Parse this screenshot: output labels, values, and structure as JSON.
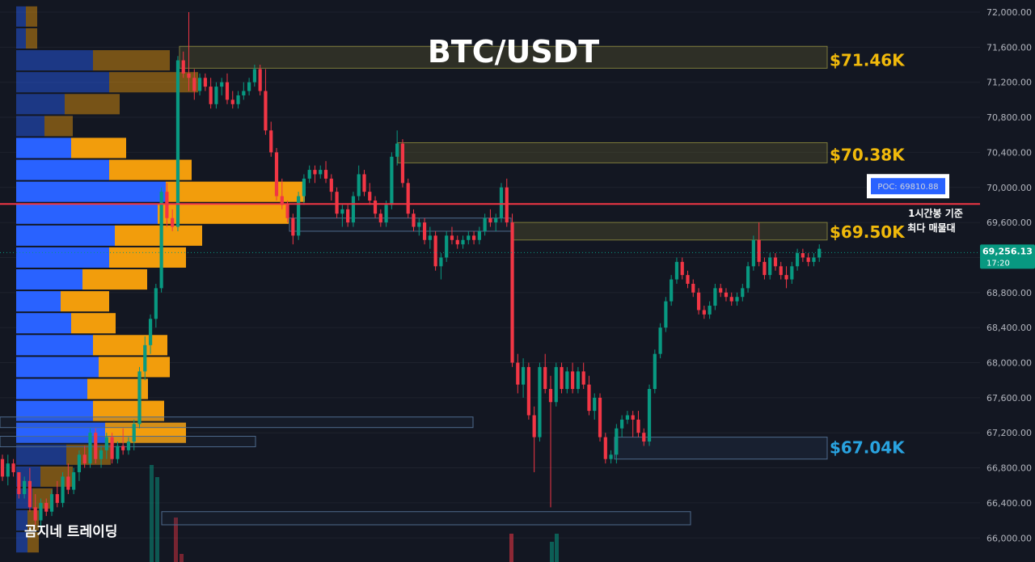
{
  "chart_data": {
    "type": "candlestick",
    "title": "BTC/USDT",
    "watermark": "곰지네 트레이딩",
    "ylim": [
      65900,
      72150
    ],
    "y_ticks": [
      "72,000.00",
      "71,600.00",
      "71,200.00",
      "70,800.00",
      "70,400.00",
      "70,000.00",
      "69,600.00",
      "69,200.00",
      "68,800.00",
      "68,400.00",
      "68,000.00",
      "67,600.00",
      "67,200.00",
      "66,800.00",
      "66,400.00",
      "66,000.00"
    ],
    "y_tick_values": [
      72000,
      71600,
      71200,
      70800,
      70400,
      70000,
      69600,
      69200,
      68800,
      68400,
      68000,
      67600,
      67200,
      66800,
      66400,
      66000
    ],
    "current_price": {
      "label": "69,256.13",
      "time": "17:20",
      "value": 69256.13,
      "color": "#089981"
    },
    "poc": {
      "label": "POC: 69810.88",
      "value": 69810.88,
      "color": "#f23645",
      "note_line1": "1시간봉 기준",
      "note_line2": "최다 매물대"
    },
    "levels": [
      {
        "label": "$71.46K",
        "value": 71460,
        "low": 71360,
        "high": 71610,
        "color": "#f0b90b"
      },
      {
        "label": "$70.38K",
        "value": 70380,
        "low": 70280,
        "high": 70510,
        "color": "#f0b90b"
      },
      {
        "label": "$69.50K",
        "value": 69500,
        "low": 69400,
        "high": 69600,
        "color": "#f0b90b"
      },
      {
        "label": "$67.04K",
        "value": 67040,
        "low": 66900,
        "high": 67150,
        "color": "#29a3e0"
      }
    ],
    "volume_profile": [
      {
        "price": 71950,
        "buy": 12,
        "sell": 14,
        "faded": true
      },
      {
        "price": 71700,
        "buy": 12,
        "sell": 14,
        "faded": true
      },
      {
        "price": 71450,
        "buy": 95,
        "sell": 95,
        "faded": true
      },
      {
        "price": 71200,
        "buy": 115,
        "sell": 110,
        "faded": true
      },
      {
        "price": 70950,
        "buy": 60,
        "sell": 68,
        "faded": true
      },
      {
        "price": 70700,
        "buy": 35,
        "sell": 35,
        "faded": true
      },
      {
        "price": 70450,
        "buy": 68,
        "sell": 68,
        "faded": false
      },
      {
        "price": 70200,
        "buy": 115,
        "sell": 102,
        "faded": false
      },
      {
        "price": 69950,
        "buy": 185,
        "sell": 172,
        "faded": false
      },
      {
        "price": 69700,
        "buy": 175,
        "sell": 162,
        "faded": false
      },
      {
        "price": 69450,
        "buy": 122,
        "sell": 108,
        "faded": false
      },
      {
        "price": 69200,
        "buy": 115,
        "sell": 95,
        "faded": false
      },
      {
        "price": 68950,
        "buy": 82,
        "sell": 80,
        "faded": false
      },
      {
        "price": 68700,
        "buy": 55,
        "sell": 60,
        "faded": false
      },
      {
        "price": 68450,
        "buy": 68,
        "sell": 55,
        "faded": false
      },
      {
        "price": 68200,
        "buy": 95,
        "sell": 92,
        "faded": false
      },
      {
        "price": 67950,
        "buy": 102,
        "sell": 88,
        "faded": false
      },
      {
        "price": 67700,
        "buy": 88,
        "sell": 75,
        "faded": false
      },
      {
        "price": 67450,
        "buy": 95,
        "sell": 88,
        "faded": false
      },
      {
        "price": 67200,
        "buy": 110,
        "sell": 100,
        "faded": false
      },
      {
        "price": 66950,
        "buy": 62,
        "sell": 55,
        "faded": true
      },
      {
        "price": 66700,
        "buy": 30,
        "sell": 40,
        "faded": true
      },
      {
        "price": 66450,
        "buy": 20,
        "sell": 25,
        "faded": true
      },
      {
        "price": 66200,
        "buy": 14,
        "sell": 14,
        "faded": true
      },
      {
        "price": 65950,
        "buy": 14,
        "sell": 14,
        "faded": true
      }
    ],
    "candles": [
      [
        66900,
        66950,
        66650,
        66700
      ],
      [
        66700,
        66950,
        66600,
        66850
      ],
      [
        66850,
        66900,
        66700,
        66750
      ],
      [
        66750,
        66750,
        66450,
        66500
      ],
      [
        66500,
        66700,
        66450,
        66650
      ],
      [
        66650,
        66800,
        66300,
        66350
      ],
      [
        66350,
        66500,
        66150,
        66200
      ],
      [
        66200,
        66450,
        66100,
        66400
      ],
      [
        66400,
        66450,
        66250,
        66300
      ],
      [
        66300,
        66550,
        66250,
        66500
      ],
      [
        66500,
        66650,
        66350,
        66400
      ],
      [
        66400,
        66750,
        66350,
        66700
      ],
      [
        66700,
        66850,
        66500,
        66550
      ],
      [
        66550,
        66800,
        66500,
        66750
      ],
      [
        66750,
        67000,
        66650,
        66950
      ],
      [
        66950,
        67050,
        66800,
        66850
      ],
      [
        66850,
        67250,
        66800,
        67200
      ],
      [
        67200,
        67250,
        66850,
        66900
      ],
      [
        66900,
        67050,
        66800,
        67000
      ],
      [
        67000,
        67200,
        66900,
        67150
      ],
      [
        67150,
        67200,
        66850,
        66900
      ],
      [
        66900,
        67100,
        66850,
        67050
      ],
      [
        67050,
        67250,
        66950,
        67000
      ],
      [
        67000,
        67150,
        66950,
        67100
      ],
      [
        67100,
        67350,
        67000,
        67300
      ],
      [
        67300,
        67950,
        67250,
        67900
      ],
      [
        67900,
        68300,
        67800,
        68200
      ],
      [
        68200,
        68550,
        68100,
        68500
      ],
      [
        68500,
        68900,
        68400,
        68850
      ],
      [
        68850,
        70000,
        68800,
        69950
      ],
      [
        69950,
        70050,
        69550,
        69650
      ],
      [
        69650,
        69750,
        69500,
        69550
      ],
      [
        69550,
        71500,
        69500,
        71450
      ],
      [
        71450,
        71550,
        71250,
        71300
      ],
      [
        71300,
        72000,
        71100,
        71250
      ],
      [
        71250,
        71350,
        71000,
        71100
      ],
      [
        71100,
        71300,
        71050,
        71250
      ],
      [
        71250,
        71300,
        71100,
        71150
      ],
      [
        71150,
        71250,
        70900,
        70950
      ],
      [
        70950,
        71200,
        70900,
        71150
      ],
      [
        71150,
        71250,
        71050,
        71200
      ],
      [
        71200,
        71300,
        70950,
        71000
      ],
      [
        71000,
        71100,
        70900,
        70950
      ],
      [
        70950,
        71100,
        70900,
        71050
      ],
      [
        71050,
        71200,
        71000,
        71100
      ],
      [
        71100,
        71250,
        71050,
        71200
      ],
      [
        71200,
        71400,
        71150,
        71350
      ],
      [
        71350,
        71400,
        71050,
        71100
      ],
      [
        71100,
        71350,
        70600,
        70650
      ],
      [
        70650,
        70750,
        70350,
        70400
      ],
      [
        70400,
        70450,
        69850,
        69900
      ],
      [
        69900,
        70100,
        69750,
        69800
      ],
      [
        69800,
        69850,
        69600,
        69650
      ],
      [
        69650,
        69700,
        69350,
        69450
      ],
      [
        69450,
        69950,
        69400,
        69900
      ],
      [
        69900,
        70150,
        69800,
        70100
      ],
      [
        70100,
        70250,
        70050,
        70200
      ],
      [
        70200,
        70250,
        70050,
        70150
      ],
      [
        70150,
        70250,
        70100,
        70200
      ],
      [
        70200,
        70300,
        70050,
        70100
      ],
      [
        70100,
        70150,
        69850,
        69950
      ],
      [
        69950,
        70000,
        69650,
        69700
      ],
      [
        69700,
        69800,
        69550,
        69750
      ],
      [
        69750,
        69800,
        69550,
        69600
      ],
      [
        69600,
        69950,
        69550,
        69900
      ],
      [
        69900,
        70250,
        69850,
        70150
      ],
      [
        70150,
        70200,
        69900,
        69950
      ],
      [
        69950,
        70050,
        69800,
        69850
      ],
      [
        69850,
        69900,
        69650,
        69700
      ],
      [
        69700,
        69750,
        69550,
        69600
      ],
      [
        69600,
        69850,
        69550,
        69800
      ],
      [
        69800,
        70400,
        69750,
        70350
      ],
      [
        70350,
        70650,
        70250,
        70500
      ],
      [
        70500,
        70550,
        70000,
        70050
      ],
      [
        70050,
        70100,
        69650,
        69700
      ],
      [
        69700,
        69750,
        69500,
        69550
      ],
      [
        69550,
        69650,
        69450,
        69600
      ],
      [
        69600,
        69650,
        69350,
        69400
      ],
      [
        69400,
        69550,
        69300,
        69450
      ],
      [
        69450,
        69500,
        69050,
        69100
      ],
      [
        69100,
        69250,
        68950,
        69200
      ],
      [
        69200,
        69500,
        69150,
        69450
      ],
      [
        69450,
        69550,
        69350,
        69400
      ],
      [
        69400,
        69450,
        69300,
        69350
      ],
      [
        69350,
        69450,
        69300,
        69400
      ],
      [
        69400,
        69500,
        69350,
        69450
      ],
      [
        69450,
        69500,
        69350,
        69400
      ],
      [
        69400,
        69550,
        69350,
        69500
      ],
      [
        69500,
        69700,
        69450,
        69650
      ],
      [
        69650,
        69750,
        69550,
        69600
      ],
      [
        69600,
        69700,
        69500,
        69650
      ],
      [
        69650,
        70050,
        69600,
        70000
      ],
      [
        70000,
        70100,
        69550,
        69600
      ],
      [
        69600,
        69700,
        67950,
        68000
      ],
      [
        68000,
        68100,
        67650,
        67750
      ],
      [
        67750,
        68050,
        67600,
        67950
      ],
      [
        67950,
        68000,
        67350,
        67400
      ],
      [
        67400,
        67500,
        66750,
        67150
      ],
      [
        67150,
        68000,
        67100,
        67950
      ],
      [
        67950,
        68100,
        67650,
        67700
      ],
      [
        67700,
        67850,
        66350,
        67550
      ],
      [
        67550,
        68000,
        67500,
        67950
      ],
      [
        67950,
        68000,
        67650,
        67700
      ],
      [
        67700,
        67950,
        67650,
        67900
      ],
      [
        67900,
        68000,
        67650,
        67700
      ],
      [
        67700,
        67950,
        67650,
        67900
      ],
      [
        67900,
        68000,
        67700,
        67750
      ],
      [
        67750,
        67850,
        67400,
        67450
      ],
      [
        67450,
        67650,
        67350,
        67600
      ],
      [
        67600,
        67650,
        67100,
        67150
      ],
      [
        67150,
        67200,
        66850,
        66900
      ],
      [
        66900,
        67000,
        66850,
        66950
      ],
      [
        66950,
        67300,
        66850,
        67250
      ],
      [
        67250,
        67400,
        67150,
        67350
      ],
      [
        67350,
        67450,
        67300,
        67400
      ],
      [
        67400,
        67450,
        67150,
        67350
      ],
      [
        67350,
        67450,
        67150,
        67200
      ],
      [
        67200,
        67250,
        67050,
        67100
      ],
      [
        67100,
        67750,
        67050,
        67700
      ],
      [
        67700,
        68150,
        67650,
        68100
      ],
      [
        68100,
        68450,
        68050,
        68400
      ],
      [
        68400,
        68750,
        68350,
        68700
      ],
      [
        68700,
        69000,
        68650,
        68950
      ],
      [
        68950,
        69200,
        68900,
        69150
      ],
      [
        69150,
        69200,
        68950,
        69000
      ],
      [
        69000,
        69050,
        68850,
        68900
      ],
      [
        68900,
        68950,
        68750,
        68800
      ],
      [
        68800,
        68850,
        68550,
        68600
      ],
      [
        68600,
        68650,
        68500,
        68550
      ],
      [
        68550,
        68700,
        68500,
        68650
      ],
      [
        68650,
        68900,
        68600,
        68850
      ],
      [
        68850,
        68900,
        68750,
        68800
      ],
      [
        68800,
        68850,
        68700,
        68750
      ],
      [
        68750,
        68800,
        68650,
        68700
      ],
      [
        68700,
        68800,
        68650,
        68750
      ],
      [
        68750,
        68900,
        68700,
        68850
      ],
      [
        68850,
        69150,
        68800,
        69100
      ],
      [
        69100,
        69450,
        69050,
        69400
      ],
      [
        69400,
        69600,
        69100,
        69150
      ],
      [
        69150,
        69200,
        68950,
        69000
      ],
      [
        69000,
        69250,
        68950,
        69200
      ],
      [
        69200,
        69250,
        69050,
        69100
      ],
      [
        69100,
        69150,
        68950,
        69000
      ],
      [
        69000,
        69100,
        68850,
        68950
      ],
      [
        68950,
        69150,
        68900,
        69100
      ],
      [
        69100,
        69300,
        69050,
        69250
      ],
      [
        69250,
        69300,
        69150,
        69200
      ],
      [
        69200,
        69250,
        69100,
        69150
      ],
      [
        69150,
        69250,
        69100,
        69200
      ],
      [
        69200,
        69350,
        69150,
        69300
      ]
    ]
  }
}
